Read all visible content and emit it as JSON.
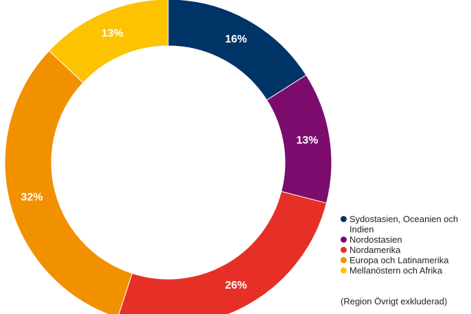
{
  "chart_data": {
    "type": "pie",
    "donut": true,
    "series": [
      {
        "name": "Sydostasien, Oceanien och Indien",
        "value": 16,
        "label": "16%",
        "color": "#003366"
      },
      {
        "name": "Nordostasien",
        "value": 13,
        "label": "13%",
        "color": "#7b0c6d"
      },
      {
        "name": "Nordamerika",
        "value": 26,
        "label": "26%",
        "color": "#e63027"
      },
      {
        "name": "Europa och Latinamerika",
        "value": 32,
        "label": "32%",
        "color": "#f29100"
      },
      {
        "name": "Mellanöstern och Afrika",
        "value": 13,
        "label": "13%",
        "color": "#fdc300"
      }
    ],
    "legend_position": "bottom-right",
    "footnote": "(Region Övrigt exkluderad)"
  }
}
